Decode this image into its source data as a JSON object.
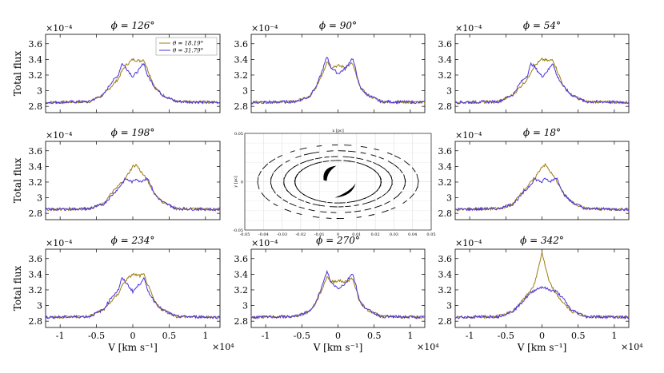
{
  "chart_data": {
    "type": "line",
    "panels": [
      {
        "title": "ϕ = 126°",
        "shape": "a"
      },
      {
        "title": "ϕ = 90°",
        "shape": "b"
      },
      {
        "title": "ϕ = 54°",
        "shape": "a"
      },
      {
        "title": "ϕ = 198°",
        "shape": "c"
      },
      {
        "title": "",
        "shape": "orbit"
      },
      {
        "title": "ϕ = 18°",
        "shape": "c"
      },
      {
        "title": "ϕ = 234°",
        "shape": "a"
      },
      {
        "title": "ϕ = 270°",
        "shape": "b"
      },
      {
        "title": "ϕ = 342°",
        "shape": "d"
      }
    ],
    "ylabel": "Total flux",
    "xlabel": "V [km s⁻¹]",
    "y_multiplier": "×10⁻⁴",
    "x_multiplier": "×10⁴",
    "xlim": [
      -1.2,
      1.2
    ],
    "ylim": [
      2.72,
      3.72
    ],
    "xticks": [
      "-1",
      "-0.5",
      "0",
      "0.5",
      "1"
    ],
    "yticks": [
      "2.8",
      "3",
      "3.2",
      "3.4",
      "3.6"
    ],
    "legend": {
      "placement": "top-right",
      "entries": [
        "θ = 18.19°",
        "θ = 31.79°"
      ]
    },
    "series_colors": [
      "#9c7d12",
      "#4b32d8"
    ],
    "profiles": {
      "a": {
        "x": [
          -1.2,
          -0.6,
          -0.4,
          -0.3,
          -0.2,
          -0.15,
          -0.1,
          0,
          0.1,
          0.15,
          0.2,
          0.3,
          0.4,
          0.6,
          1.2
        ],
        "s1": [
          2.85,
          2.86,
          2.95,
          3.05,
          3.15,
          3.25,
          3.32,
          3.4,
          3.38,
          3.4,
          3.28,
          3.05,
          2.95,
          2.86,
          2.85
        ],
        "s2": [
          2.85,
          2.86,
          2.95,
          3.1,
          3.2,
          3.35,
          3.3,
          3.18,
          3.28,
          3.36,
          3.2,
          3.05,
          2.95,
          2.86,
          2.85
        ]
      },
      "b": {
        "x": [
          -1.2,
          -0.6,
          -0.4,
          -0.3,
          -0.2,
          -0.15,
          -0.1,
          0,
          0.1,
          0.2,
          0.25,
          0.3,
          0.4,
          0.6,
          1.2
        ],
        "s1": [
          2.85,
          2.86,
          2.92,
          3.05,
          3.25,
          3.38,
          3.3,
          3.32,
          3.3,
          3.35,
          3.2,
          3.05,
          2.95,
          2.86,
          2.85
        ],
        "s2": [
          2.85,
          2.86,
          2.92,
          3.05,
          3.3,
          3.44,
          3.3,
          3.22,
          3.28,
          3.42,
          3.25,
          3.05,
          2.95,
          2.86,
          2.85
        ]
      },
      "c": {
        "x": [
          -1.2,
          -0.6,
          -0.4,
          -0.3,
          -0.2,
          -0.1,
          0,
          0.05,
          0.1,
          0.2,
          0.3,
          0.4,
          0.6,
          1.2
        ],
        "s1": [
          2.85,
          2.86,
          2.92,
          3.05,
          3.15,
          3.25,
          3.4,
          3.42,
          3.35,
          3.22,
          3.05,
          2.95,
          2.86,
          2.85
        ],
        "s2": [
          2.85,
          2.86,
          2.92,
          3.02,
          3.12,
          3.24,
          3.2,
          3.25,
          3.2,
          3.26,
          3.05,
          2.95,
          2.86,
          2.85
        ]
      },
      "d": {
        "x": [
          -1.2,
          -0.6,
          -0.4,
          -0.3,
          -0.2,
          -0.1,
          -0.05,
          0,
          0.05,
          0.1,
          0.2,
          0.3,
          0.4,
          0.6,
          1.2
        ],
        "s1": [
          2.85,
          2.86,
          2.93,
          3.03,
          3.14,
          3.28,
          3.48,
          3.68,
          3.48,
          3.3,
          3.14,
          3.03,
          2.93,
          2.86,
          2.85
        ],
        "s2": [
          2.85,
          2.86,
          2.93,
          3.02,
          3.12,
          3.2,
          3.22,
          3.24,
          3.22,
          3.2,
          3.18,
          3.08,
          2.95,
          2.86,
          2.85
        ]
      }
    },
    "orbit_panel": {
      "xlabel": "x [pc]",
      "ylabel": "y [pc]",
      "xlim": [
        -0.05,
        0.05
      ],
      "ylim": [
        -0.05,
        0.05
      ],
      "xticks": [
        "-0.05",
        "-0.04",
        "-0.03",
        "-0.02",
        "-0.01",
        "0",
        "0.01",
        "0.02",
        "0.03",
        "0.04",
        "0.05"
      ],
      "yticks": [
        "0.05",
        "0",
        "-0.05"
      ],
      "grid": true
    }
  }
}
